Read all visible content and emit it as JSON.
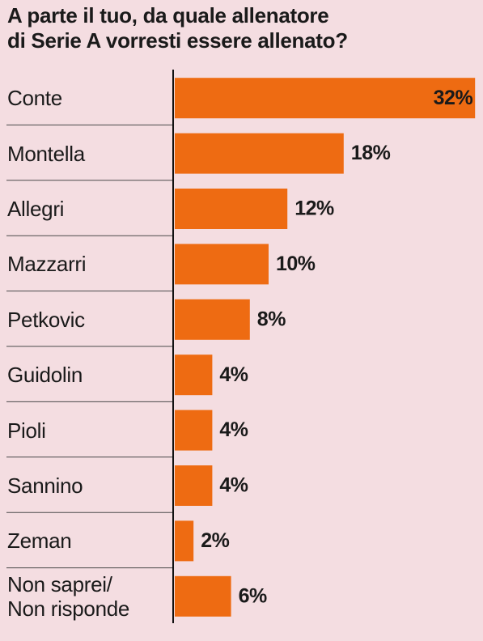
{
  "chart_data": {
    "type": "bar",
    "orientation": "horizontal",
    "title": "A parte il tuo, da quale allenatore\ndi Serie A vorresti essere allenato?",
    "categories": [
      "Conte",
      "Montella",
      "Allegri",
      "Mazzarri",
      "Petkovic",
      "Guidolin",
      "Pioli",
      "Sannino",
      "Zeman",
      "Non saprei/\nNon risponde"
    ],
    "values": [
      32,
      18,
      12,
      10,
      8,
      4,
      4,
      4,
      2,
      6
    ],
    "value_labels": [
      "32%",
      "18%",
      "12%",
      "10%",
      "8%",
      "4%",
      "4%",
      "4%",
      "2%",
      "6%"
    ],
    "color": "#ee6b12"
  }
}
